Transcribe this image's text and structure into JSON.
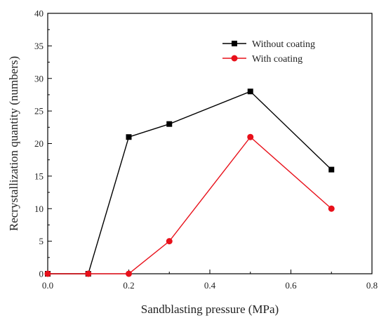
{
  "chart_data": {
    "type": "line",
    "title": "",
    "xlabel": "Sandblasting pressure (MPa)",
    "ylabel": "Recrystallization quantity (numbers)",
    "xlim": [
      0.0,
      0.8
    ],
    "ylim": [
      0,
      40
    ],
    "xticks": [
      "0.0",
      "0.2",
      "0.4",
      "0.6",
      "0.8"
    ],
    "yticks": [
      "0",
      "5",
      "10",
      "15",
      "20",
      "25",
      "30",
      "35",
      "40"
    ],
    "x": [
      0.0,
      0.1,
      0.2,
      0.3,
      0.5,
      0.7
    ],
    "series": [
      {
        "name": "Without coating",
        "values": [
          0,
          0,
          21,
          23,
          28,
          16
        ],
        "color": "#000000",
        "marker": "square"
      },
      {
        "name": "With coating",
        "values": [
          0,
          0,
          0,
          5,
          21,
          10
        ],
        "color": "#e8101a",
        "marker": "circle"
      }
    ],
    "grid": false,
    "legend_position": "top-right"
  }
}
